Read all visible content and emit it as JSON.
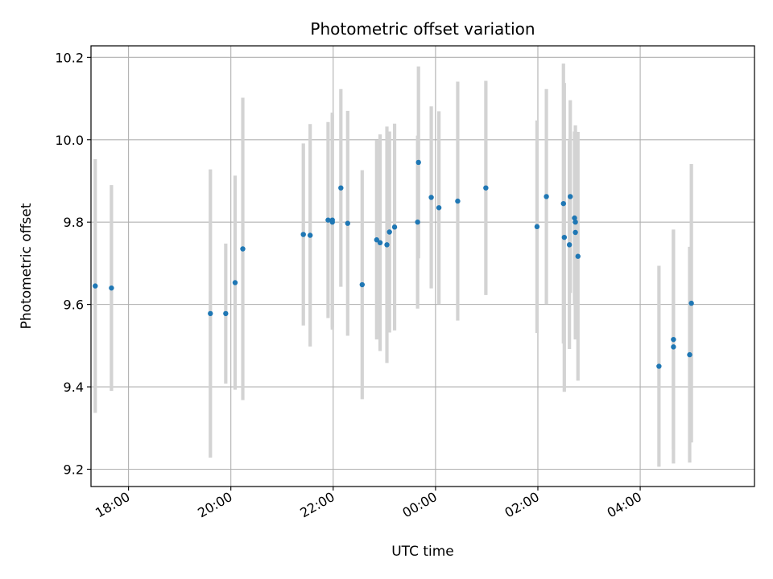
{
  "chart_data": {
    "type": "scatter",
    "title": "Photometric offset variation",
    "xlabel": "UTC time",
    "ylabel": "Photometric offset",
    "grid": true,
    "x_ticks": [
      "18:00",
      "20:00",
      "22:00",
      "00:00",
      "02:00",
      "04:00"
    ],
    "y_ticks": [
      9.2,
      9.4,
      9.6,
      9.8,
      10.0,
      10.2
    ],
    "xlim": [
      "17:16",
      "06:14"
    ],
    "ylim": [
      9.158,
      10.228
    ],
    "colors": {
      "point": "#1f77b4",
      "errorbar": "#d3d3d3",
      "grid": "#b0b0b0"
    },
    "series": [
      {
        "x": [
          "17:21",
          "17:40",
          "19:36",
          "19:54",
          "20:05",
          "20:14",
          "21:25",
          "21:33",
          "21:54",
          "21:59",
          "21:59",
          "22:09",
          "22:17",
          "22:34",
          "22:51",
          "22:55",
          "23:03",
          "23:06",
          "23:12",
          "23:39",
          "23:40",
          "23:55",
          "00:04",
          "00:26",
          "00:59",
          "01:59",
          "02:10",
          "02:30",
          "02:31",
          "02:37",
          "02:38",
          "02:43",
          "02:44",
          "02:44",
          "02:47",
          "04:22",
          "04:39",
          "04:39",
          "04:58",
          "05:00"
        ],
        "y": [
          9.645,
          9.64,
          9.578,
          9.578,
          9.653,
          9.735,
          9.77,
          9.768,
          9.805,
          9.8,
          9.805,
          9.883,
          9.797,
          9.648,
          9.757,
          9.75,
          9.745,
          9.776,
          9.788,
          9.8,
          9.945,
          9.86,
          9.835,
          9.851,
          9.883,
          9.789,
          9.862,
          9.845,
          9.763,
          9.745,
          9.862,
          9.81,
          9.775,
          9.8,
          9.717,
          9.45,
          9.497,
          9.515,
          9.478,
          9.603
        ],
        "yerr": [
          0.308,
          0.25,
          0.35,
          0.17,
          0.26,
          0.367,
          0.221,
          0.27,
          0.238,
          0.261,
          0.261,
          0.24,
          0.273,
          0.278,
          0.242,
          0.263,
          0.287,
          0.244,
          0.251,
          0.21,
          0.233,
          0.221,
          0.234,
          0.29,
          0.26,
          0.258,
          0.261,
          0.34,
          0.375,
          0.253,
          0.234,
          0.21,
          0.26,
          0.22,
          0.302,
          0.244,
          0.283,
          0.267,
          0.262,
          0.338
        ]
      }
    ]
  }
}
